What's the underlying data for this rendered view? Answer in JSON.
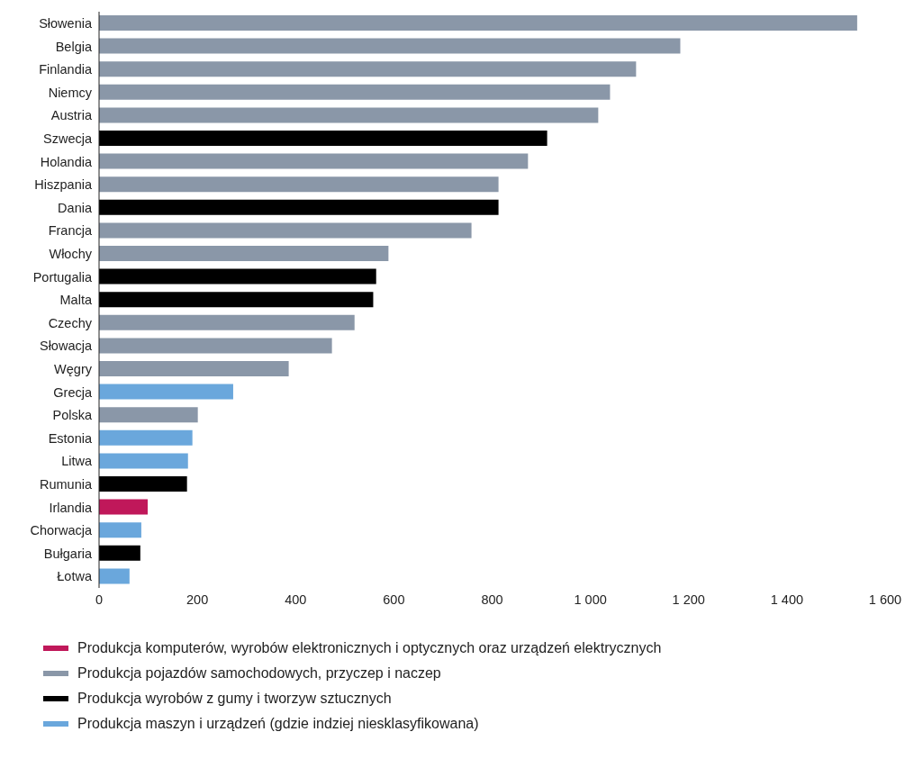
{
  "chart_data": {
    "type": "bar",
    "orientation": "horizontal",
    "stacked": true,
    "legend": "bottom",
    "grid": false,
    "categories": [
      "Słowenia",
      "Belgia",
      "Finlandia",
      "Niemcy",
      "Austria",
      "Szwecja",
      "Holandia",
      "Hiszpania",
      "Dania",
      "Francja",
      "Włochy",
      "Portugalia",
      "Malta",
      "Czechy",
      "Słowacja",
      "Węgry",
      "Grecja",
      "Polska",
      "Estonia",
      "Litwa",
      "Rumunia",
      "Irlandia",
      "Chorwacja",
      "Bułgaria",
      "Łotwa"
    ],
    "xlim": [
      0,
      1600
    ],
    "xticks": [
      0,
      200,
      400,
      600,
      800,
      {
        "value": 1000,
        "label": "1 000"
      },
      {
        "value": 1200,
        "label": "1 200"
      },
      {
        "value": 1400,
        "label": "1 400"
      },
      {
        "value": 1600,
        "label": "1 600"
      }
    ],
    "series": [
      {
        "name": "Produkcja komputerów, wyrobów elektronicznych i optycznych oraz urządzeń elektrycznych",
        "color": "#c0185a",
        "values": [
          null,
          null,
          null,
          null,
          null,
          null,
          null,
          null,
          null,
          null,
          null,
          null,
          null,
          null,
          null,
          null,
          null,
          null,
          null,
          null,
          null,
          99,
          null,
          null,
          null
        ]
      },
      {
        "name": "Produkcja pojazdów samochodowych, przyczep i naczep",
        "color": "#8a97a8",
        "values": [
          1543,
          1183,
          1093,
          1040,
          1016,
          null,
          873,
          813,
          null,
          758,
          589,
          null,
          null,
          520,
          474,
          386,
          null,
          201,
          null,
          null,
          null,
          null,
          null,
          null,
          null
        ]
      },
      {
        "name": "Produkcja wyrobów z gumy i tworzyw sztucznych",
        "color": "#000000",
        "values": [
          null,
          null,
          null,
          null,
          null,
          912,
          null,
          null,
          813,
          null,
          null,
          564,
          558,
          null,
          null,
          null,
          null,
          null,
          null,
          null,
          179,
          null,
          null,
          84,
          null
        ]
      },
      {
        "name": "Produkcja maszyn i urządzeń (gdzie indziej niesklasyfikowana)",
        "color": "#6aa7dc",
        "values": [
          null,
          null,
          null,
          null,
          null,
          null,
          null,
          null,
          null,
          null,
          null,
          null,
          null,
          null,
          null,
          null,
          273,
          null,
          190,
          181,
          null,
          null,
          86,
          null,
          62
        ]
      }
    ]
  }
}
